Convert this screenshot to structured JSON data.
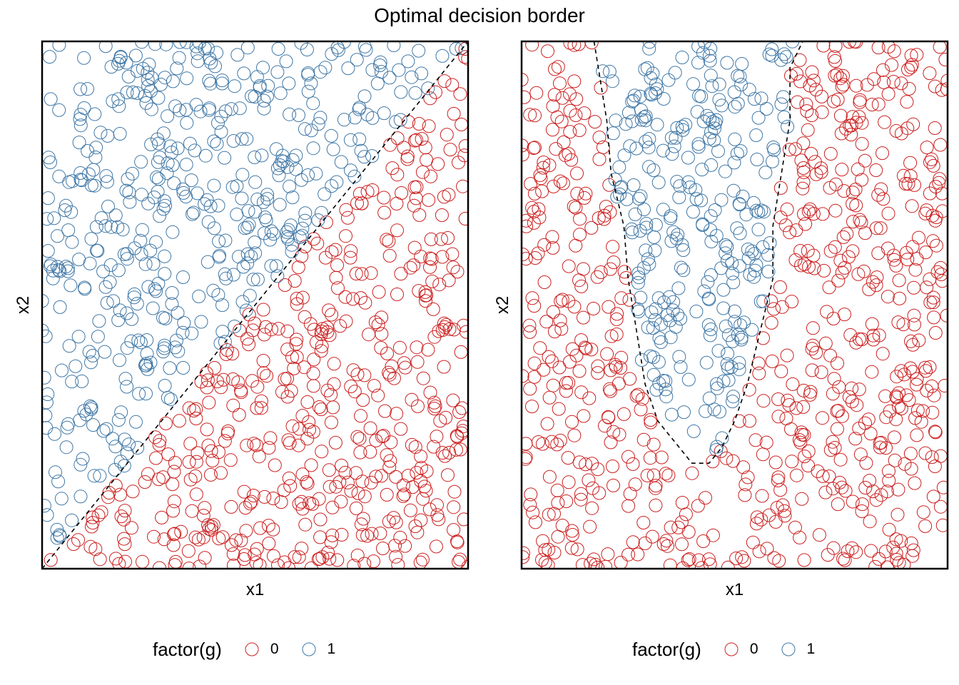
{
  "title": "Optimal decision border",
  "colors": {
    "class0": "#cc1f1f",
    "class1": "#3f77a6",
    "border": "#000000"
  },
  "legend": {
    "title": "factor(g)",
    "labels": [
      "0",
      "1"
    ]
  },
  "chart_data": [
    {
      "type": "scatter",
      "xlabel": "x1",
      "ylabel": "x2",
      "xlim": [
        0,
        1
      ],
      "ylim": [
        0,
        1
      ],
      "grid": false,
      "legend_position": "bottom",
      "classes": [
        "0",
        "1"
      ],
      "n_points_per_panel": 1000,
      "class_rule": "g = 1 where x2 > border(x1)",
      "decision_border": {
        "style": "dashed",
        "x": [
          0.0,
          0.1,
          0.2,
          0.3,
          0.4,
          0.5,
          0.6,
          0.7,
          0.8,
          0.9,
          1.0
        ],
        "y": [
          0.0,
          0.1,
          0.2,
          0.3,
          0.4,
          0.5,
          0.6,
          0.7,
          0.8,
          0.9,
          1.0
        ]
      }
    },
    {
      "type": "scatter",
      "xlabel": "x1",
      "ylabel": "x2",
      "xlim": [
        0,
        1
      ],
      "ylim": [
        0,
        1
      ],
      "grid": false,
      "legend_position": "bottom",
      "classes": [
        "0",
        "1"
      ],
      "n_points_per_panel": 1000,
      "class_rule": "g = 1 where left(x2) < x1 < right(x2)",
      "decision_border": {
        "style": "dashed",
        "y": [
          0.2,
          0.23,
          0.28,
          0.35,
          0.45,
          0.55,
          0.65,
          0.75,
          0.85,
          0.95,
          1.0
        ],
        "left_x": [
          0.4,
          0.37,
          0.32,
          0.29,
          0.27,
          0.25,
          0.24,
          0.21,
          0.2,
          0.18,
          0.17
        ],
        "right_x": [
          0.44,
          0.47,
          0.5,
          0.53,
          0.56,
          0.59,
          0.59,
          0.61,
          0.63,
          0.63,
          0.66
        ]
      }
    }
  ]
}
